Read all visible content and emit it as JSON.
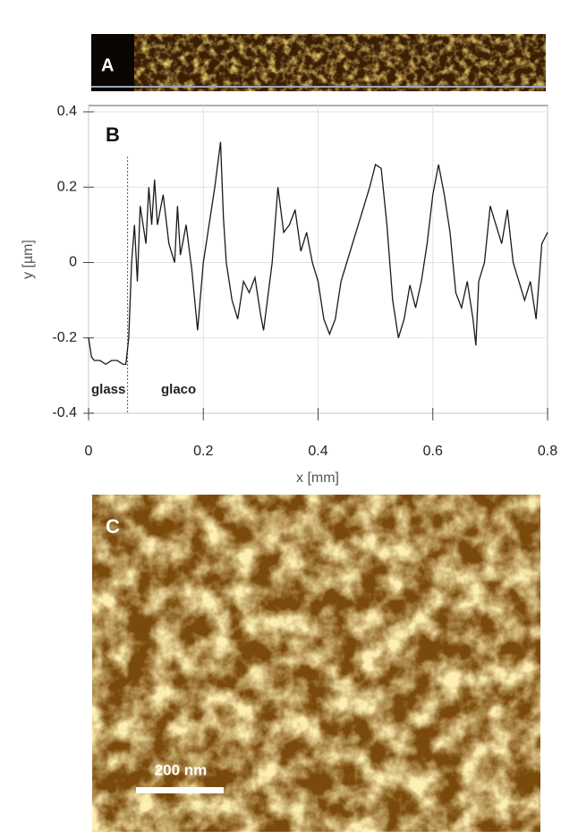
{
  "panel_labels": [
    "A",
    "B",
    "C"
  ],
  "scale_bar": "200 nm",
  "chart_data": {
    "type": "line",
    "x_label": "x [mm]",
    "y_label": "y [µm]",
    "annotations": [
      "glass",
      "glaco"
    ],
    "divider_x": 0.068,
    "xlim": [
      0,
      0.8
    ],
    "ylim": [
      -0.4,
      0.4
    ],
    "xticks": [
      0,
      0.2,
      0.4,
      0.6,
      0.8
    ],
    "yticks": [
      -0.4,
      -0.2,
      0,
      0.2,
      0.4
    ],
    "grid": true,
    "x": [
      0,
      0.005,
      0.01,
      0.02,
      0.03,
      0.04,
      0.05,
      0.06,
      0.065,
      0.07,
      0.075,
      0.08,
      0.085,
      0.09,
      0.1,
      0.105,
      0.11,
      0.115,
      0.12,
      0.13,
      0.14,
      0.15,
      0.155,
      0.16,
      0.17,
      0.18,
      0.19,
      0.2,
      0.21,
      0.22,
      0.23,
      0.235,
      0.24,
      0.25,
      0.26,
      0.27,
      0.28,
      0.29,
      0.3,
      0.305,
      0.31,
      0.32,
      0.33,
      0.34,
      0.35,
      0.36,
      0.37,
      0.38,
      0.39,
      0.4,
      0.41,
      0.42,
      0.43,
      0.44,
      0.45,
      0.46,
      0.47,
      0.48,
      0.49,
      0.5,
      0.51,
      0.52,
      0.53,
      0.54,
      0.55,
      0.56,
      0.57,
      0.58,
      0.59,
      0.6,
      0.61,
      0.62,
      0.63,
      0.64,
      0.65,
      0.66,
      0.67,
      0.675,
      0.68,
      0.69,
      0.7,
      0.71,
      0.72,
      0.73,
      0.74,
      0.75,
      0.76,
      0.77,
      0.78,
      0.79,
      0.8
    ],
    "series": [
      {
        "color": "#1a1a1a",
        "values": [
          -0.2,
          -0.25,
          -0.26,
          -0.26,
          -0.27,
          -0.26,
          -0.26,
          -0.27,
          -0.27,
          -0.2,
          0.0,
          0.1,
          -0.05,
          0.15,
          0.05,
          0.2,
          0.1,
          0.22,
          0.1,
          0.18,
          0.05,
          0.0,
          0.15,
          0.02,
          0.1,
          -0.02,
          -0.18,
          0.0,
          0.1,
          0.2,
          0.32,
          0.12,
          0.0,
          -0.1,
          -0.15,
          -0.05,
          -0.08,
          -0.04,
          -0.14,
          -0.18,
          -0.12,
          0.0,
          0.2,
          0.08,
          0.1,
          0.14,
          0.03,
          0.08,
          0.0,
          -0.05,
          -0.15,
          -0.19,
          -0.15,
          -0.05,
          0.0,
          0.05,
          0.1,
          0.15,
          0.2,
          0.26,
          0.25,
          0.1,
          -0.1,
          -0.2,
          -0.15,
          -0.06,
          -0.12,
          -0.05,
          0.05,
          0.18,
          0.26,
          0.18,
          0.08,
          -0.08,
          -0.12,
          -0.05,
          -0.15,
          -0.22,
          -0.05,
          0.0,
          0.15,
          0.1,
          0.05,
          0.14,
          0.0,
          -0.05,
          -0.1,
          -0.05,
          -0.15,
          0.05,
          0.08
        ]
      }
    ]
  }
}
